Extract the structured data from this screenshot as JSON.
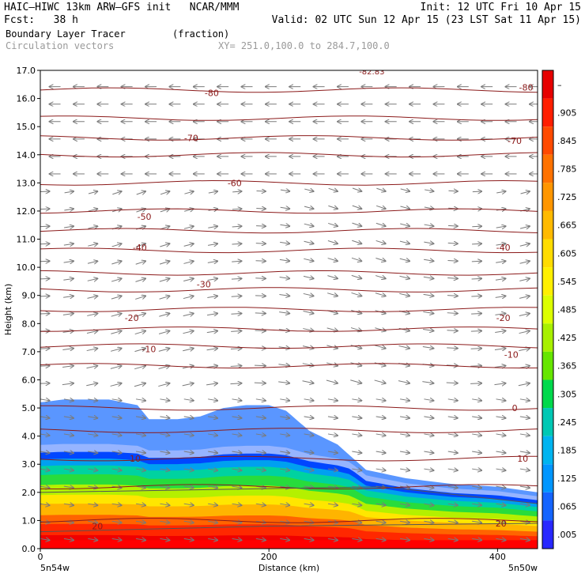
{
  "header": {
    "line1_left": "HAIC–HIWC 13km ARW–GFS init   NCAR/MMM",
    "line1_right": "Init: 12 UTC Fri 10 Apr 15",
    "line2_left": "Fcst:   38 h",
    "line2_right": "Valid: 02 UTC Sun 12 Apr 15 (23 LST Sat 11 Apr 15)",
    "field_name": "Boundary Layer Tracer",
    "field_units": "(fraction)",
    "vectors_label": "Circulation vectors",
    "xy_label": "XY= 251.0,100.0 to 284.7,100.0"
  },
  "chart_data": {
    "type": "heatmap",
    "title": "Boundary Layer Tracer",
    "xlabel": "Distance (km)",
    "ylabel": "Height (km)",
    "xlim": [
      0,
      435
    ],
    "ylim": [
      0,
      17
    ],
    "xticks": [
      0,
      200,
      400
    ],
    "yticks": [
      "0.0",
      "1.0",
      "2.0",
      "3.0",
      "4.0",
      "5.0",
      "6.0",
      "7.0",
      "8.0",
      "9.0",
      "10.0",
      "11.0",
      "12.0",
      "13.0",
      "14.0",
      "15.0",
      "16.0",
      "17.0"
    ],
    "x_endpoints": [
      "5n54w",
      "5n50w"
    ],
    "colorbar": {
      "labels": [
        "–",
        ".905",
        ".845",
        ".785",
        ".725",
        ".665",
        ".605",
        ".545",
        ".485",
        ".425",
        ".365",
        ".305",
        ".245",
        ".185",
        ".125",
        ".065",
        ".005"
      ],
      "colors": [
        "#e60000",
        "#ff1e00",
        "#ff4a00",
        "#ff7200",
        "#ff9600",
        "#ffba00",
        "#ffdc00",
        "#fff000",
        "#dcff00",
        "#a8f000",
        "#66e600",
        "#00d94c",
        "#00c8b4",
        "#00b4f0",
        "#0096ff",
        "#1464ff",
        "#2828ff"
      ]
    },
    "tracer_boundary_km": [
      [
        0,
        5.2
      ],
      [
        20,
        5.3
      ],
      [
        40,
        5.3
      ],
      [
        60,
        5.3
      ],
      [
        85,
        5.1
      ],
      [
        95,
        4.6
      ],
      [
        120,
        4.6
      ],
      [
        140,
        4.7
      ],
      [
        160,
        5.0
      ],
      [
        180,
        5.1
      ],
      [
        200,
        5.1
      ],
      [
        215,
        4.9
      ],
      [
        235,
        4.2
      ],
      [
        260,
        3.7
      ],
      [
        285,
        2.8
      ],
      [
        320,
        2.5
      ],
      [
        360,
        2.3
      ],
      [
        400,
        2.2
      ],
      [
        435,
        2.0
      ]
    ],
    "isotherm_labels": [
      {
        "text": "-80",
        "x": 150,
        "y": 16.2
      },
      {
        "text": "-80",
        "x": 425,
        "y": 16.4
      },
      {
        "text": "-70",
        "x": 132,
        "y": 14.6
      },
      {
        "text": "-70",
        "x": 415,
        "y": 14.5
      },
      {
        "text": "-60",
        "x": 170,
        "y": 13.0
      },
      {
        "text": "-50",
        "x": 91,
        "y": 11.8
      },
      {
        "text": "-40",
        "x": 87,
        "y": 10.7
      },
      {
        "text": "-40",
        "x": 405,
        "y": 10.7
      },
      {
        "text": "-30",
        "x": 143,
        "y": 9.4
      },
      {
        "text": "-20",
        "x": 80,
        "y": 8.2
      },
      {
        "text": "-20",
        "x": 405,
        "y": 8.2
      },
      {
        "text": "-10",
        "x": 95,
        "y": 7.1
      },
      {
        "text": "-10",
        "x": 412,
        "y": 6.9
      },
      {
        "text": "0",
        "x": 415,
        "y": 5.0
      },
      {
        "text": "10",
        "x": 83,
        "y": 3.2
      },
      {
        "text": "10",
        "x": 422,
        "y": 3.2
      },
      {
        "text": "20",
        "x": 403,
        "y": 0.9
      },
      {
        "text": "20",
        "x": 50,
        "y": 0.8
      }
    ],
    "top_label": "-82.83"
  }
}
